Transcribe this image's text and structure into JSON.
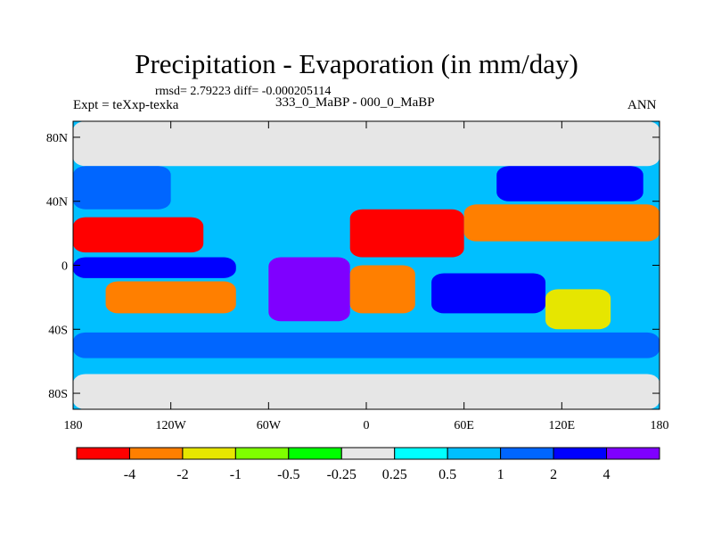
{
  "chart_data": {
    "type": "heatmap",
    "projection": "cylindrical-equidistant",
    "title": "Precipitation - Evaporation (in mm/day)",
    "stats": "rmsd= 2.79223 diff= -0.000205114",
    "left_label": "Expt = teXxp-texka",
    "center_label": "333_0_MaBP - 000_0_MaBP",
    "right_label": "ANN",
    "xlim": [
      -180,
      180
    ],
    "ylim": [
      -90,
      90
    ],
    "x_ticks": [
      {
        "value": -180,
        "label": "180"
      },
      {
        "value": -120,
        "label": "120W"
      },
      {
        "value": -60,
        "label": "60W"
      },
      {
        "value": 0,
        "label": "0"
      },
      {
        "value": 60,
        "label": "60E"
      },
      {
        "value": 120,
        "label": "120E"
      },
      {
        "value": 180,
        "label": "180"
      }
    ],
    "y_ticks": [
      {
        "value": 80,
        "label": "80N"
      },
      {
        "value": 40,
        "label": "40N"
      },
      {
        "value": 0,
        "label": "0"
      },
      {
        "value": -40,
        "label": "40S"
      },
      {
        "value": -80,
        "label": "80S"
      }
    ],
    "levels": [
      -4,
      -2,
      -1,
      -0.5,
      -0.25,
      0.25,
      0.5,
      1,
      2,
      4
    ],
    "level_labels": [
      "-4",
      "-2",
      "-1",
      "-0.5",
      "-0.25",
      "0.25",
      "0.5",
      "1",
      "2",
      "4"
    ],
    "colors": [
      "#ff0000",
      "#ff7f00",
      "#e6e600",
      "#7fff00",
      "#00ff00",
      "#e6e6e6",
      "#00ffff",
      "#00bfff",
      "#0066ff",
      "#0000ff",
      "#7f00ff"
    ],
    "regions": [
      {
        "name": "polar-north",
        "lon": [
          -180,
          180
        ],
        "lat": [
          62,
          90
        ],
        "value": 0
      },
      {
        "name": "polar-south",
        "lon": [
          -180,
          180
        ],
        "lat": [
          -90,
          -68
        ],
        "value": 0
      },
      {
        "name": "north-pacific-storm",
        "lon": [
          -180,
          -120
        ],
        "lat": [
          35,
          62
        ],
        "value": 1.5
      },
      {
        "name": "north-pacific-dry",
        "lon": [
          -180,
          -100
        ],
        "lat": [
          8,
          30
        ],
        "value": -5
      },
      {
        "name": "pacific-itcz",
        "lon": [
          -180,
          -80
        ],
        "lat": [
          -8,
          5
        ],
        "value": 3
      },
      {
        "name": "south-pacific-dry",
        "lon": [
          -160,
          -80
        ],
        "lat": [
          -30,
          -10
        ],
        "value": -3
      },
      {
        "name": "southern-ocean-band",
        "lon": [
          -180,
          180
        ],
        "lat": [
          -58,
          -42
        ],
        "value": 1.5
      },
      {
        "name": "north-continent-wet",
        "lon": [
          -100,
          -40
        ],
        "lat": [
          20,
          55
        ],
        "value": 0.8
      },
      {
        "name": "tropical-land-wet",
        "lon": [
          -60,
          -10
        ],
        "lat": [
          -35,
          5
        ],
        "value": 5
      },
      {
        "name": "africa-dry",
        "lon": [
          -10,
          30
        ],
        "lat": [
          -30,
          0
        ],
        "value": -3
      },
      {
        "name": "subtropical-dry-belt",
        "lon": [
          -10,
          60
        ],
        "lat": [
          5,
          35
        ],
        "value": -5
      },
      {
        "name": "east-continent-dry",
        "lon": [
          60,
          180
        ],
        "lat": [
          15,
          38
        ],
        "value": -3
      },
      {
        "name": "asia-wet",
        "lon": [
          80,
          170
        ],
        "lat": [
          40,
          62
        ],
        "value": 2.5
      },
      {
        "name": "indian-ocean-wet",
        "lon": [
          40,
          110
        ],
        "lat": [
          -30,
          -5
        ],
        "value": 3
      },
      {
        "name": "australia-dry",
        "lon": [
          110,
          150
        ],
        "lat": [
          -40,
          -15
        ],
        "value": -2
      }
    ]
  }
}
